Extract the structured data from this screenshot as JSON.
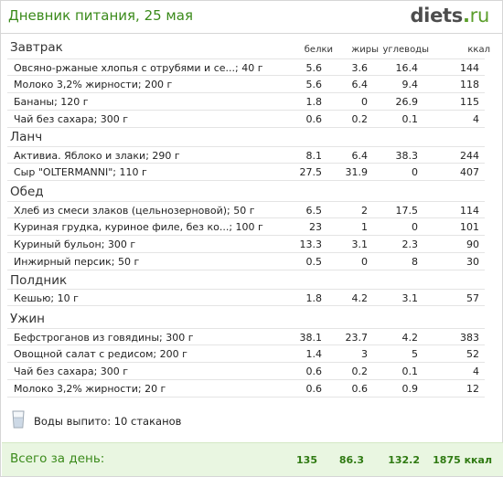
{
  "header": {
    "title": "Дневник питания, 25 мая",
    "logo_main": "diets",
    "logo_dot": ".",
    "logo_tld": "ru"
  },
  "columns": {
    "protein": "белки",
    "fat": "жиры",
    "carbs": "углеводы",
    "kcal": "ккал"
  },
  "meals": [
    {
      "name": "Завтрак",
      "items": [
        {
          "food": "Овсяно-ржаные хлопья с отрубями и се...; 40 г",
          "protein": "5.6",
          "fat": "3.6",
          "carbs": "16.4",
          "kcal": "144"
        },
        {
          "food": "Молоко 3,2% жирности; 200 г",
          "protein": "5.6",
          "fat": "6.4",
          "carbs": "9.4",
          "kcal": "118"
        },
        {
          "food": "Бананы; 120 г",
          "protein": "1.8",
          "fat": "0",
          "carbs": "26.9",
          "kcal": "115"
        },
        {
          "food": "Чай без сахара; 300 г",
          "protein": "0.6",
          "fat": "0.2",
          "carbs": "0.1",
          "kcal": "4"
        }
      ]
    },
    {
      "name": "Ланч",
      "items": [
        {
          "food": "Активиа. Яблоко и злаки; 290 г",
          "protein": "8.1",
          "fat": "6.4",
          "carbs": "38.3",
          "kcal": "244"
        },
        {
          "food": "Сыр \"OLTERMANNI\"; 110 г",
          "protein": "27.5",
          "fat": "31.9",
          "carbs": "0",
          "kcal": "407"
        }
      ]
    },
    {
      "name": "Обед",
      "items": [
        {
          "food": "Хлеб из смеси злаков (цельнозерновой); 50 г",
          "protein": "6.5",
          "fat": "2",
          "carbs": "17.5",
          "kcal": "114"
        },
        {
          "food": "Куриная грудка, куриное филе, без ко...; 100 г",
          "protein": "23",
          "fat": "1",
          "carbs": "0",
          "kcal": "101"
        },
        {
          "food": "Куриный бульон; 300 г",
          "protein": "13.3",
          "fat": "3.1",
          "carbs": "2.3",
          "kcal": "90"
        },
        {
          "food": "Инжирный персик; 50 г",
          "protein": "0.5",
          "fat": "0",
          "carbs": "8",
          "kcal": "30"
        }
      ]
    },
    {
      "name": "Полдник",
      "items": [
        {
          "food": "Кешью; 10 г",
          "protein": "1.8",
          "fat": "4.2",
          "carbs": "3.1",
          "kcal": "57"
        }
      ]
    },
    {
      "name": "Ужин",
      "items": [
        {
          "food": "Бефстроганов из говядины; 300 г",
          "protein": "38.1",
          "fat": "23.7",
          "carbs": "4.2",
          "kcal": "383"
        },
        {
          "food": "Овощной салат с редисом; 200 г",
          "protein": "1.4",
          "fat": "3",
          "carbs": "5",
          "kcal": "52"
        },
        {
          "food": "Чай без сахара; 300 г",
          "protein": "0.6",
          "fat": "0.2",
          "carbs": "0.1",
          "kcal": "4"
        },
        {
          "food": "Молоко 3,2% жирности; 20 г",
          "protein": "0.6",
          "fat": "0.6",
          "carbs": "0.9",
          "kcal": "12"
        }
      ]
    }
  ],
  "water": {
    "icon": "water-glass-icon",
    "text": "Воды выпито: 10 стаканов"
  },
  "total": {
    "label": "Всего за день:",
    "protein": "135",
    "fat": "86.3",
    "carbs": "132.2",
    "kcal": "1875 ккал"
  },
  "colors": {
    "accent_green": "#3a8a1a",
    "total_bg": "#e9f6e1"
  }
}
